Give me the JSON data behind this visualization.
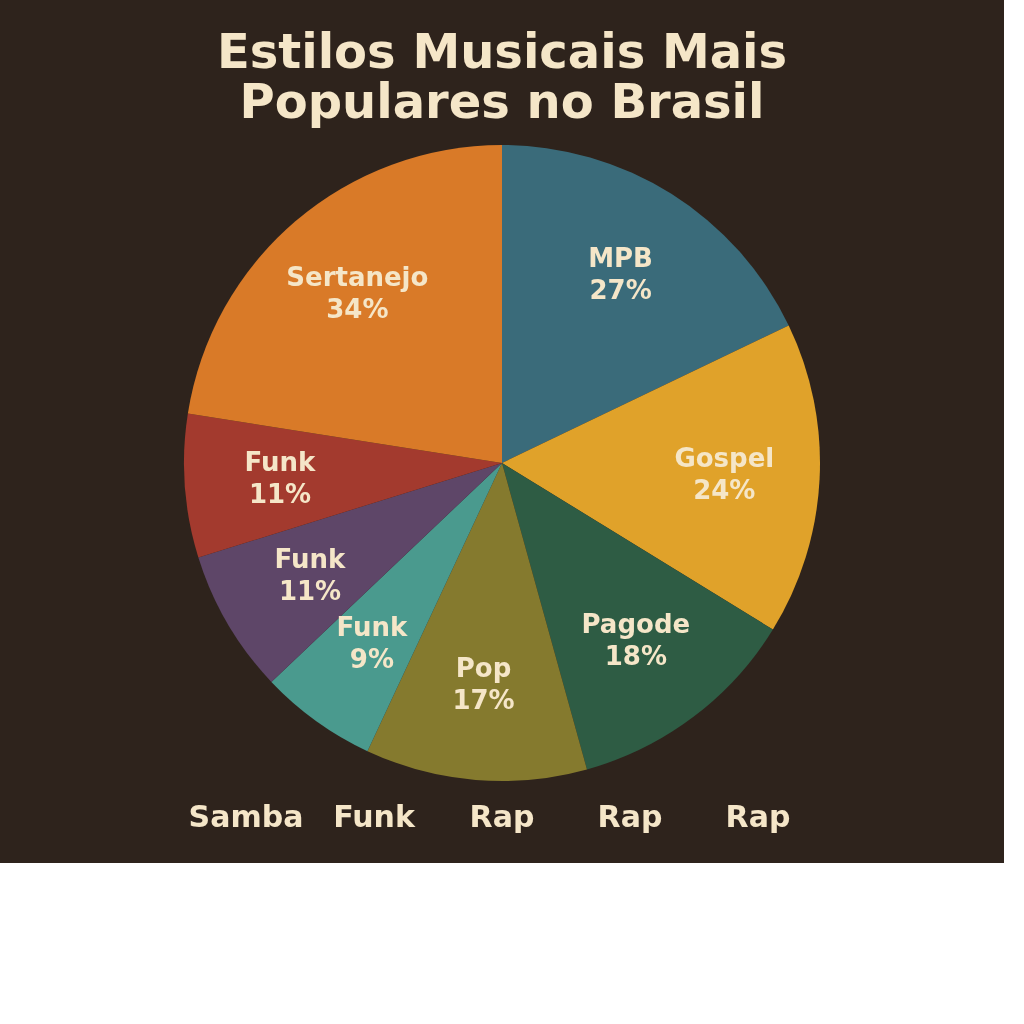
{
  "chart_data": {
    "type": "pie",
    "title": "Estilos Musicais Mais Populares no Brasil",
    "categories": [
      "MPB",
      "Gospel",
      "Pagode",
      "Pop",
      "Funk",
      "Funk",
      "Funk",
      "Sertanejo"
    ],
    "values": [
      27,
      24,
      18,
      17,
      9,
      11,
      11,
      34
    ],
    "value_labels": [
      "27%",
      "24%",
      "18%",
      "17%",
      "9%",
      "11%",
      "11%",
      "34%"
    ],
    "colors": [
      "#3a6b7a",
      "#e0a22a",
      "#2e5c44",
      "#857a2e",
      "#4a9a8e",
      "#5e4668",
      "#a33a2e",
      "#d97a28"
    ],
    "annotations": [
      "Samba",
      "Funk",
      "Rap",
      "Rap",
      "Rap"
    ],
    "legend": false
  }
}
